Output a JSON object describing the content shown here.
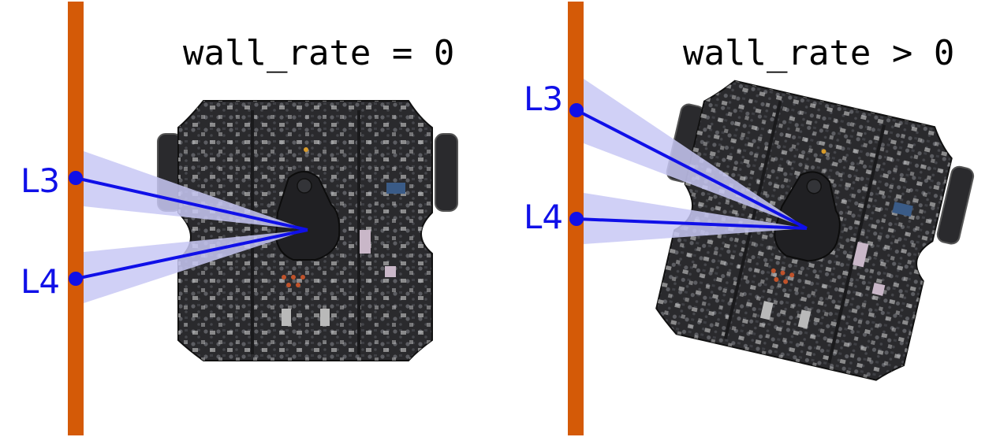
{
  "panels": [
    {
      "caption": "wall_rate = 0",
      "sensor_labels": [
        "L3",
        "L4"
      ]
    },
    {
      "caption": "wall_rate > 0",
      "sensor_labels": [
        "L3",
        "L4"
      ]
    }
  ],
  "colors": {
    "wall": "#d45a07",
    "sensor_beam": "#1010e8",
    "beam_fan": "#c8c8f4",
    "robot_body": "#2a2a2d",
    "robot_detail": "#55565b"
  }
}
